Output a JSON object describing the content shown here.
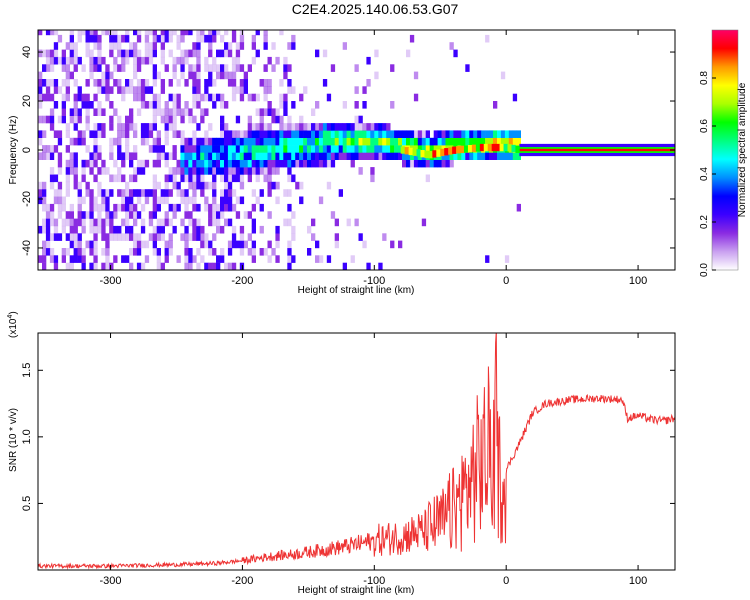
{
  "title": "C2E4.2025.140.06.53.G07",
  "chart_data": [
    {
      "type": "heatmap",
      "xlabel": "Height of straight line (km)",
      "ylabel": "Frequency (Hz)",
      "xlim": [
        -355,
        128
      ],
      "ylim": [
        -49,
        49
      ],
      "x_ticks": [
        -300,
        -200,
        -100,
        0,
        100
      ],
      "y_ticks": [
        -40,
        -20,
        0,
        20,
        40
      ],
      "grid": false,
      "colorbar": {
        "label": "Normalized spectral amplitude",
        "range": [
          0,
          1
        ],
        "ticks": [
          0.0,
          0.2,
          0.4,
          0.6,
          0.8
        ],
        "colors": [
          "#ffffff",
          "#c9a0f0",
          "#8a2be2",
          "#3b00ff",
          "#0000ff",
          "#0090ff",
          "#00ffff",
          "#00ff7f",
          "#00ff00",
          "#aaff00",
          "#ffff00",
          "#ff9900",
          "#ff0000",
          "#ff0066"
        ]
      },
      "ridge": {
        "x": [
          -240,
          -200,
          -160,
          -130,
          -100,
          -80,
          -60,
          -40,
          -20,
          0,
          10,
          128
        ],
        "y": [
          -5,
          -3,
          0,
          2,
          2,
          0,
          -2,
          0,
          1,
          1,
          0,
          0
        ]
      }
    },
    {
      "type": "line",
      "xlabel": "Height of straight line (km)",
      "ylabel": "SNR (10 * v/v)",
      "yscale_label": "(x10",
      "yscale_exp": "4",
      "yscale_close": ")",
      "xlim": [
        -355,
        128
      ],
      "ylim": [
        0,
        1.78
      ],
      "x_ticks": [
        -300,
        -200,
        -100,
        0,
        100
      ],
      "y_ticks": [
        0.5,
        1.0,
        1.5
      ],
      "y_tick_labels": [
        "0.5",
        "1.0",
        "1.5"
      ],
      "grid": false,
      "series": [
        {
          "color": "#ee3333",
          "x": [
            -355,
            -300,
            -250,
            -220,
            -200,
            -180,
            -160,
            -140,
            -120,
            -100,
            -80,
            -60,
            -50,
            -40,
            -30,
            -20,
            -12,
            -8,
            -5,
            0,
            10,
            20,
            30,
            50,
            70,
            88,
            92,
            100,
            110,
            120,
            128
          ],
          "y": [
            0.03,
            0.03,
            0.04,
            0.05,
            0.07,
            0.1,
            0.12,
            0.15,
            0.18,
            0.22,
            0.25,
            0.3,
            0.35,
            0.45,
            0.6,
            0.8,
            0.9,
            1.05,
            0.7,
            0.75,
            0.95,
            1.18,
            1.25,
            1.28,
            1.29,
            1.28,
            1.14,
            1.16,
            1.13,
            1.12,
            1.14
          ]
        }
      ]
    }
  ]
}
